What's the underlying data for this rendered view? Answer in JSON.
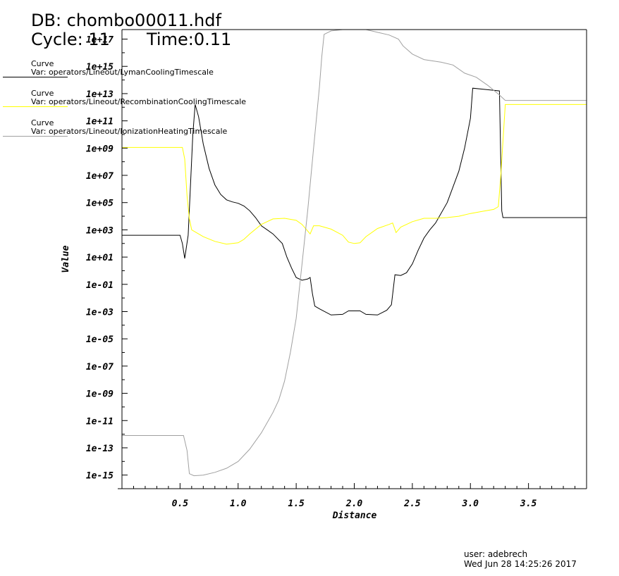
{
  "header": {
    "db_title": "DB: chombo00011.hdf",
    "cycle": "Cycle: 11",
    "time": "Time:0.11"
  },
  "legend": [
    {
      "label": "Curve",
      "var": "Var: operators/Lineout/LymanCoolingTimescale",
      "color": "#000000"
    },
    {
      "label": "Curve",
      "var": "Var: operators/Lineout/RecombinationCoolingTimescale",
      "color": "#ffff00"
    },
    {
      "label": "Curve",
      "var": "Var: operators/Lineout/IonizationHeatingTimescale",
      "color": "#a0a0a0"
    }
  ],
  "footer": {
    "user": "user: adebrech",
    "date": "Wed Jun 28 14:25:26 2017"
  },
  "chart_data": {
    "type": "line",
    "title": "",
    "xlabel": "Distance",
    "ylabel": "Value",
    "xlim": [
      0.0,
      4.0
    ],
    "ylim_log10": [
      -16,
      17.7
    ],
    "yscale": "log",
    "grid": false,
    "x_ticks": [
      0.5,
      1.0,
      1.5,
      2.0,
      2.5,
      3.0,
      3.5
    ],
    "x_tick_labels": [
      "0.5",
      "1.0",
      "1.5",
      "2.0",
      "2.5",
      "3.0",
      "3.5"
    ],
    "y_ticks_log10": [
      -15,
      -13,
      -11,
      -9,
      -7,
      -5,
      -3,
      -1,
      1,
      3,
      5,
      7,
      9,
      11,
      13,
      15,
      17
    ],
    "y_tick_labels": [
      "1e-15",
      "1e-13",
      "1e-11",
      "1e-09",
      "1e-07",
      "1e-05",
      "1e-03",
      "1e-01",
      "1e+01",
      "1e+03",
      "1e+05",
      "1e+07",
      "1e+09",
      "1e+11",
      "1e+13",
      "1e+15",
      "1e+17"
    ],
    "series": [
      {
        "name": "LymanCoolingTimescale",
        "color": "#000000",
        "points_log10": [
          [
            0.0,
            2.6
          ],
          [
            0.5,
            2.6
          ],
          [
            0.52,
            2.0
          ],
          [
            0.54,
            0.9
          ],
          [
            0.57,
            2.6
          ],
          [
            0.59,
            6.3
          ],
          [
            0.61,
            10.0
          ],
          [
            0.63,
            12.2
          ],
          [
            0.66,
            11.3
          ],
          [
            0.7,
            9.3
          ],
          [
            0.75,
            7.5
          ],
          [
            0.8,
            6.3
          ],
          [
            0.85,
            5.6
          ],
          [
            0.9,
            5.2
          ],
          [
            0.95,
            5.05
          ],
          [
            1.0,
            4.95
          ],
          [
            1.05,
            4.75
          ],
          [
            1.1,
            4.4
          ],
          [
            1.15,
            3.9
          ],
          [
            1.2,
            3.3
          ],
          [
            1.3,
            2.7
          ],
          [
            1.38,
            2.0
          ],
          [
            1.42,
            1.0
          ],
          [
            1.46,
            0.2
          ],
          [
            1.5,
            -0.5
          ],
          [
            1.55,
            -0.7
          ],
          [
            1.6,
            -0.6
          ],
          [
            1.62,
            -0.5
          ],
          [
            1.64,
            -1.7
          ],
          [
            1.66,
            -2.6
          ],
          [
            1.7,
            -2.8
          ],
          [
            1.8,
            -3.25
          ],
          [
            1.9,
            -3.2
          ],
          [
            1.95,
            -2.95
          ],
          [
            2.05,
            -2.95
          ],
          [
            2.1,
            -3.2
          ],
          [
            2.2,
            -3.25
          ],
          [
            2.28,
            -2.9
          ],
          [
            2.32,
            -2.5
          ],
          [
            2.35,
            -0.3
          ],
          [
            2.4,
            -0.35
          ],
          [
            2.45,
            -0.15
          ],
          [
            2.5,
            0.5
          ],
          [
            2.55,
            1.5
          ],
          [
            2.6,
            2.4
          ],
          [
            2.65,
            3.0
          ],
          [
            2.7,
            3.5
          ],
          [
            2.8,
            5.0
          ],
          [
            2.9,
            7.3
          ],
          [
            2.95,
            9.0
          ],
          [
            3.0,
            11.2
          ],
          [
            3.02,
            13.4
          ],
          [
            3.25,
            13.2
          ],
          [
            3.27,
            4.4
          ],
          [
            3.28,
            3.9
          ],
          [
            4.0,
            3.9
          ]
        ]
      },
      {
        "name": "RecombinationCoolingTimescale",
        "color": "#ffff00",
        "points_log10": [
          [
            0.0,
            9.05
          ],
          [
            0.52,
            9.05
          ],
          [
            0.54,
            8.2
          ],
          [
            0.56,
            5.5
          ],
          [
            0.58,
            3.8
          ],
          [
            0.6,
            3.0
          ],
          [
            0.7,
            2.5
          ],
          [
            0.8,
            2.15
          ],
          [
            0.9,
            1.95
          ],
          [
            1.0,
            2.05
          ],
          [
            1.05,
            2.3
          ],
          [
            1.1,
            2.7
          ],
          [
            1.2,
            3.4
          ],
          [
            1.3,
            3.8
          ],
          [
            1.4,
            3.85
          ],
          [
            1.5,
            3.7
          ],
          [
            1.55,
            3.4
          ],
          [
            1.6,
            2.9
          ],
          [
            1.62,
            2.7
          ],
          [
            1.65,
            3.3
          ],
          [
            1.7,
            3.3
          ],
          [
            1.8,
            3.05
          ],
          [
            1.9,
            2.6
          ],
          [
            1.95,
            2.1
          ],
          [
            2.0,
            2.0
          ],
          [
            2.05,
            2.05
          ],
          [
            2.1,
            2.5
          ],
          [
            2.2,
            3.1
          ],
          [
            2.3,
            3.4
          ],
          [
            2.33,
            3.5
          ],
          [
            2.36,
            2.8
          ],
          [
            2.4,
            3.2
          ],
          [
            2.5,
            3.6
          ],
          [
            2.6,
            3.85
          ],
          [
            2.7,
            3.85
          ],
          [
            2.8,
            3.9
          ],
          [
            2.9,
            4.0
          ],
          [
            3.0,
            4.2
          ],
          [
            3.1,
            4.35
          ],
          [
            3.2,
            4.5
          ],
          [
            3.24,
            4.7
          ],
          [
            3.26,
            6.8
          ],
          [
            3.28,
            9.5
          ],
          [
            3.3,
            12.2
          ],
          [
            4.0,
            12.2
          ]
        ]
      },
      {
        "name": "IonizationHeatingTimescale",
        "color": "#a0a0a0",
        "points_log10": [
          [
            0.0,
            -12.1
          ],
          [
            0.53,
            -12.1
          ],
          [
            0.56,
            -13.2
          ],
          [
            0.58,
            -14.9
          ],
          [
            0.62,
            -15.05
          ],
          [
            0.7,
            -15.0
          ],
          [
            0.8,
            -14.8
          ],
          [
            0.9,
            -14.5
          ],
          [
            1.0,
            -14.0
          ],
          [
            1.1,
            -13.1
          ],
          [
            1.2,
            -11.9
          ],
          [
            1.3,
            -10.4
          ],
          [
            1.35,
            -9.5
          ],
          [
            1.4,
            -8.1
          ],
          [
            1.45,
            -6.0
          ],
          [
            1.5,
            -3.5
          ],
          [
            1.55,
            0.5
          ],
          [
            1.6,
            4.5
          ],
          [
            1.65,
            9.0
          ],
          [
            1.7,
            13.5
          ],
          [
            1.72,
            15.7
          ],
          [
            1.74,
            17.35
          ],
          [
            1.8,
            17.6
          ],
          [
            1.9,
            17.9
          ],
          [
            1.97,
            18.15
          ],
          [
            2.03,
            18.2
          ],
          [
            2.1,
            17.9
          ],
          [
            2.2,
            17.5
          ],
          [
            2.3,
            17.3
          ],
          [
            2.38,
            17.0
          ],
          [
            2.42,
            16.5
          ],
          [
            2.5,
            15.9
          ],
          [
            2.6,
            15.5
          ],
          [
            2.75,
            15.3
          ],
          [
            2.85,
            15.1
          ],
          [
            2.95,
            14.5
          ],
          [
            3.05,
            14.2
          ],
          [
            3.15,
            13.6
          ],
          [
            3.25,
            12.9
          ],
          [
            3.3,
            12.5
          ],
          [
            4.0,
            12.5
          ]
        ]
      }
    ]
  }
}
